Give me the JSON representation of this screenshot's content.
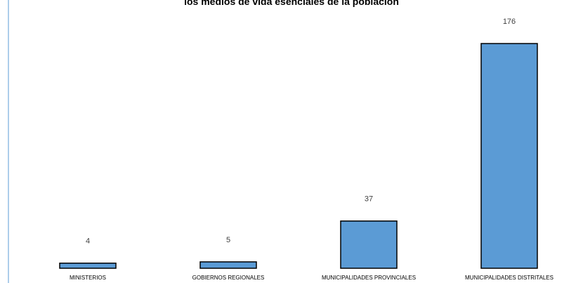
{
  "chart_data": {
    "type": "bar",
    "title": "los medios de vida esenciales de la población",
    "categories": [
      "MINISTERIOS",
      "GOBIERNOS REGIONALES",
      "MUNICIPALIDADES PROVINCIALES",
      "MUNICIPALIDADES DISTRITALES"
    ],
    "values": [
      4,
      5,
      37,
      176
    ],
    "xlabel": "",
    "ylabel": "",
    "ylim": [
      0,
      176
    ],
    "grid": false,
    "legend": "none",
    "bar_color": "#5b9bd5",
    "bar_edge_color": "#000000",
    "axis_color": "#5b9bd5"
  }
}
